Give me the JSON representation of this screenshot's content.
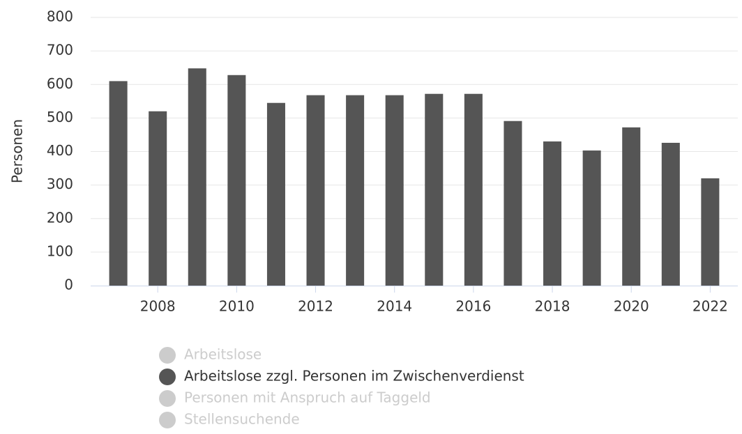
{
  "chart_data": {
    "type": "bar",
    "y_label": "Personen",
    "x": [
      2007,
      2008,
      2009,
      2010,
      2011,
      2012,
      2013,
      2014,
      2015,
      2016,
      2017,
      2018,
      2019,
      2020,
      2021,
      2022
    ],
    "xlim": [
      2006.3,
      2022.7
    ],
    "xticks": [
      2008,
      2010,
      2012,
      2014,
      2016,
      2018,
      2020,
      2022
    ],
    "ylim": [
      0,
      800
    ],
    "yticks": [
      0,
      100,
      200,
      300,
      400,
      500,
      600,
      700,
      800
    ],
    "grid": true,
    "legend": "bottom",
    "hidden_color": "#cccccc",
    "series": [
      {
        "name": "Arbeitslose",
        "visible": false
      },
      {
        "name": "Arbeitslose zzgl. Personen im Zwischenverdienst",
        "color": "#555555",
        "visible": true,
        "values": [
          610,
          520,
          648,
          628,
          545,
          568,
          568,
          568,
          572,
          572,
          491,
          430,
          403,
          472,
          426,
          320
        ]
      },
      {
        "name": "Personen mit Anspruch auf Taggeld",
        "visible": false
      },
      {
        "name": "Stellensuchende",
        "visible": false
      }
    ]
  }
}
